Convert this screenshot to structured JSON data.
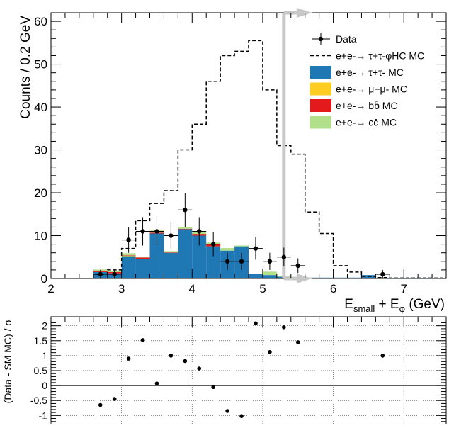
{
  "chart_data": [
    {
      "type": "bar",
      "title": "",
      "xlabel": "E_small + E_φ (GeV)",
      "xlabel_main": "E",
      "xlabel_sub": "small",
      "xlabel_plus": " + E",
      "xlabel_sub2": "φ",
      "xlabel_unit": " (GeV)",
      "ylabel": "Counts / 0.2 GeV",
      "xlim": [
        2.0,
        7.6
      ],
      "ylim": [
        0,
        62
      ],
      "xticks": [
        "2",
        "3",
        "4",
        "5",
        "6",
        "7"
      ],
      "xtick_values": [
        2,
        3,
        4,
        5,
        6,
        7
      ],
      "yticks": [
        "0",
        "10",
        "20",
        "30",
        "40",
        "50",
        "60"
      ],
      "ytick_values": [
        0,
        10,
        20,
        30,
        40,
        50,
        60
      ],
      "bin_edges": [
        2.6,
        2.8,
        3.0,
        3.2,
        3.4,
        3.6,
        3.8,
        4.0,
        4.2,
        4.4,
        4.6,
        4.8,
        5.0,
        5.2,
        5.4,
        5.6,
        5.8,
        6.0,
        6.2,
        6.4,
        6.6,
        6.8,
        7.0,
        7.2,
        7.4,
        7.6
      ],
      "stack": [
        {
          "name": "e+e- → τ+τ- MC",
          "color": "#1f77b4",
          "values": [
            1.5,
            1.2,
            5.2,
            4.5,
            10.5,
            6.0,
            11.5,
            10.0,
            7.5,
            6.5,
            7.5,
            1.0,
            0.8,
            0.4,
            0.4,
            0.2,
            0.2,
            0.2,
            0.2,
            0.8,
            0.1,
            0.1,
            0.1,
            0.1,
            0.1
          ]
        },
        {
          "name": "e+e- → μ+μ- MC",
          "color": "#ffcc22",
          "values": [
            0,
            0,
            0.1,
            0,
            0,
            0,
            0,
            0,
            0,
            0,
            0,
            0,
            0,
            0,
            0,
            0,
            0,
            0,
            0,
            0,
            0,
            0,
            0,
            0,
            0
          ]
        },
        {
          "name": "e+e- → bb̄ MC",
          "color": "#e31a1c",
          "values": [
            0.2,
            0.3,
            0.1,
            0.4,
            0.2,
            0.1,
            0.1,
            0.4,
            0.5,
            0,
            0,
            0,
            0,
            0,
            0,
            0,
            0,
            0,
            0,
            0,
            0,
            0,
            0,
            0,
            0
          ]
        },
        {
          "name": "e+e- → cc̄ MC",
          "color": "#b2df8a",
          "values": [
            0.4,
            0.3,
            0.5,
            0.2,
            0.5,
            0.3,
            0.4,
            0.5,
            0.4,
            0.6,
            0.2,
            0.1,
            0.8,
            0.1,
            0,
            0,
            0,
            0,
            0,
            0,
            0,
            0,
            0,
            0,
            0
          ]
        }
      ],
      "signal": {
        "name": "e+e- → τ+τ-φ_HC MC",
        "values": [
          1,
          2,
          7,
          13.5,
          17.5,
          20.5,
          30,
          36,
          46,
          52,
          53,
          55.5,
          44,
          31,
          29,
          15.5,
          10.5,
          3,
          1.5,
          0.5,
          0.2,
          0.1,
          0.1,
          0.1,
          0.1
        ]
      },
      "data": {
        "name": "Data",
        "x": [
          2.7,
          2.9,
          3.1,
          3.3,
          3.5,
          3.7,
          3.9,
          4.1,
          4.3,
          4.5,
          4.7,
          4.9,
          5.1,
          5.3,
          5.5,
          6.7
        ],
        "y": [
          1,
          1,
          9,
          11,
          11,
          10,
          16,
          11,
          8,
          4,
          4,
          7,
          4,
          5,
          3,
          1
        ],
        "yerr": [
          1,
          1,
          3,
          3.3,
          3.3,
          3.2,
          4,
          3.3,
          2.8,
          2,
          2,
          2.6,
          2,
          2.2,
          1.7,
          1
        ]
      },
      "legend_placement": "top-right",
      "legend": [
        {
          "kind": "marker",
          "label": "Data"
        },
        {
          "kind": "dashed",
          "label": "e+e-→ τ+τ-φHC MC"
        },
        {
          "kind": "box",
          "label": "e+e-→ τ+τ- MC",
          "color": "#1f77b4"
        },
        {
          "kind": "box",
          "label": "e+e-→ μ+μ- MC",
          "color": "#ffcc22"
        },
        {
          "kind": "box",
          "label": "e+e-→ bb̄ MC",
          "color": "#e31a1c"
        },
        {
          "kind": "box",
          "label": "e+e-→ cc̄ MC",
          "color": "#b2df8a"
        }
      ],
      "annotation_arrow": {
        "x": 5.3,
        "direction": "right",
        "color": "#c8c8c8"
      }
    },
    {
      "type": "scatter",
      "title": "",
      "xlabel": "",
      "ylabel": "(Data - SM MC) / σ",
      "xlim": [
        2.0,
        7.6
      ],
      "ylim": [
        -1.3,
        2.3
      ],
      "yticks": [
        "2",
        "1.5",
        "1",
        "0.5",
        "0",
        "-0.5",
        "-1"
      ],
      "ytick_values": [
        2,
        1.5,
        1,
        0.5,
        0,
        -0.5,
        -1
      ],
      "grid": true,
      "x": [
        2.7,
        2.9,
        3.1,
        3.3,
        3.5,
        3.7,
        3.9,
        4.1,
        4.3,
        4.5,
        4.7,
        4.9,
        5.1,
        5.3,
        5.5,
        6.7
      ],
      "y": [
        -0.65,
        -0.45,
        0.9,
        1.52,
        0.07,
        1.0,
        0.82,
        0.57,
        -0.05,
        -0.85,
        -1.02,
        2.08,
        1.12,
        1.95,
        1.45,
        1.0
      ]
    }
  ]
}
